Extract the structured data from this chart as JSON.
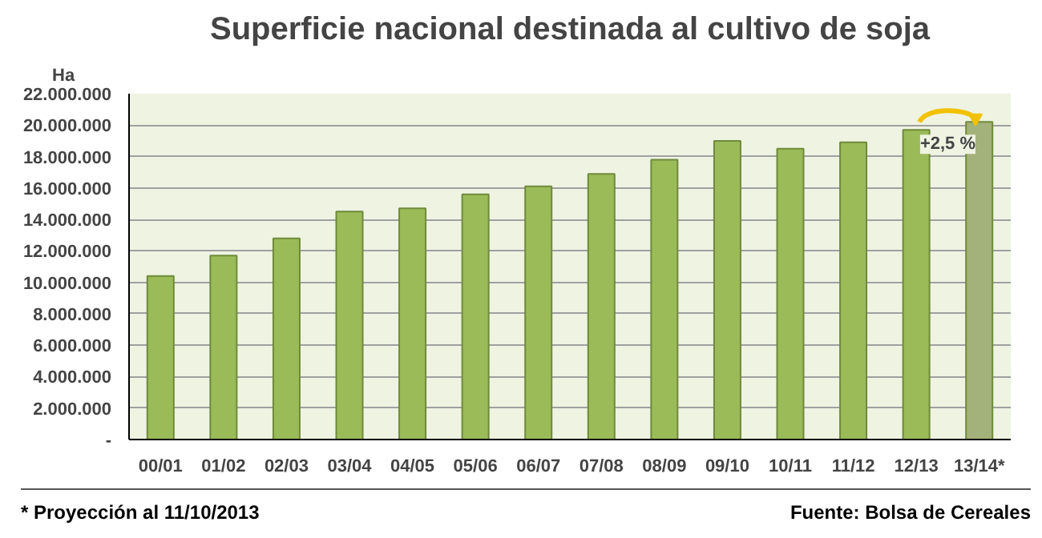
{
  "chart_data": {
    "type": "bar",
    "title": "Superficie nacional destinada al cultivo de soja",
    "ylabel": "Ha",
    "categories": [
      "00/01",
      "01/02",
      "02/03",
      "03/04",
      "04/05",
      "05/06",
      "06/07",
      "07/08",
      "08/09",
      "09/10",
      "10/11",
      "11/12",
      "12/13",
      "13/14*"
    ],
    "values": [
      10400000,
      11700000,
      12800000,
      14500000,
      14700000,
      15600000,
      16100000,
      16900000,
      17800000,
      19000000,
      18500000,
      18900000,
      19700000,
      20200000
    ],
    "colors": [
      "#9bbb59",
      "#9bbb59",
      "#9bbb59",
      "#9bbb59",
      "#9bbb59",
      "#9bbb59",
      "#9bbb59",
      "#9bbb59",
      "#9bbb59",
      "#9bbb59",
      "#9bbb59",
      "#9bbb59",
      "#9bbb59",
      "#a3b27a"
    ],
    "ylim": [
      0,
      22000000
    ],
    "yticks": [
      {
        "value": 0,
        "label": "-"
      },
      {
        "value": 2000000,
        "label": "2.000.000"
      },
      {
        "value": 4000000,
        "label": "4.000.000"
      },
      {
        "value": 6000000,
        "label": "6.000.000"
      },
      {
        "value": 8000000,
        "label": "8.000.000"
      },
      {
        "value": 10000000,
        "label": "10.000.000"
      },
      {
        "value": 12000000,
        "label": "12.000.000"
      },
      {
        "value": 14000000,
        "label": "14.000.000"
      },
      {
        "value": 16000000,
        "label": "16.000.000"
      },
      {
        "value": 18000000,
        "label": "18.000.000"
      },
      {
        "value": 20000000,
        "label": "20.000.000"
      },
      {
        "value": 22000000,
        "label": "22.000.000"
      }
    ],
    "grid": "y",
    "annotations": [
      {
        "text": "+2,5 %",
        "x": "13/14*",
        "y": 20200000
      },
      "* Proyección al 11/10/2013",
      "Fuente: Bolsa de Cereales"
    ]
  }
}
